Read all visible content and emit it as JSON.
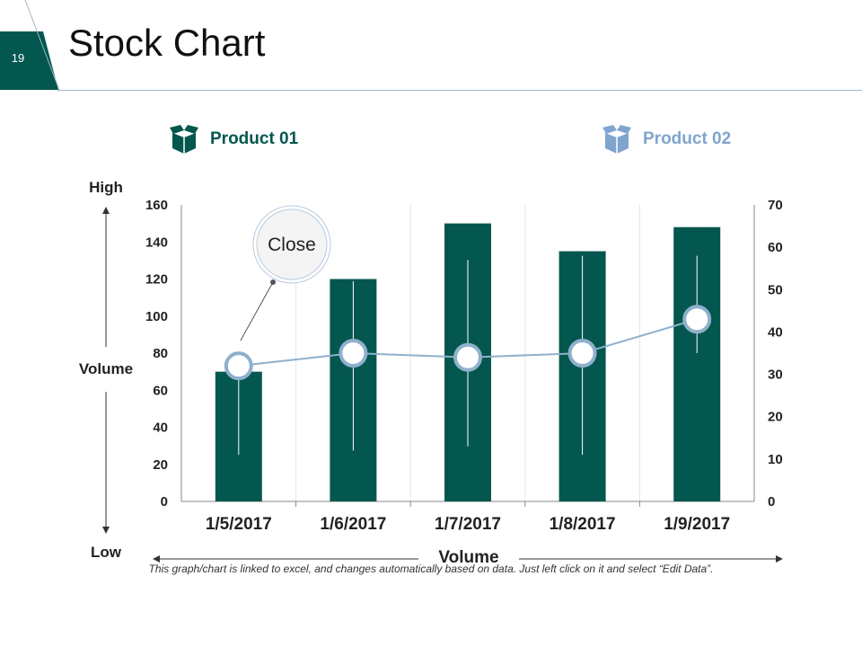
{
  "slide": {
    "number": "19",
    "title": "Stock Chart",
    "footnote": "This graph/chart is linked to excel, and changes automatically based on data. Just left click on it and select “Edit Data”."
  },
  "legend": [
    {
      "label": "Product 01",
      "icon": "box-icon",
      "color": "#03574e"
    },
    {
      "label": "Product 02",
      "icon": "box-icon",
      "color": "#7fa5cf"
    }
  ],
  "colors": {
    "accent": "#03574e",
    "line": "#8fb0cc",
    "header_line": "#9fb7c9"
  },
  "chart_data": {
    "type": "bar",
    "categories": [
      "1/5/2017",
      "1/6/2017",
      "1/7/2017",
      "1/8/2017",
      "1/9/2017"
    ],
    "volume": [
      70,
      120,
      150,
      135,
      148
    ],
    "close": [
      32,
      35,
      34,
      35,
      43
    ],
    "high": [
      37,
      52,
      57,
      58,
      58
    ],
    "low": [
      11,
      12,
      13,
      11,
      35
    ],
    "y_left": {
      "min": 0,
      "max": 160,
      "ticks": [
        "0",
        "20",
        "40",
        "60",
        "80",
        "100",
        "120",
        "140",
        "160"
      ]
    },
    "y_right": {
      "min": 0,
      "max": 70,
      "ticks": [
        "0",
        "10",
        "20",
        "30",
        "40",
        "50",
        "60",
        "70"
      ]
    },
    "labels": {
      "high": "High",
      "low": "Low",
      "left_axis": "Volume",
      "bottom_axis": "Volume",
      "callout": "Close"
    },
    "gridlines": "vertical"
  }
}
